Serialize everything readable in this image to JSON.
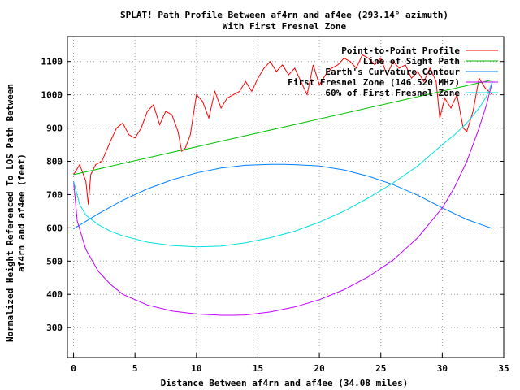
{
  "chart_data": {
    "type": "line",
    "title": "SPLAT! Path Profile Between af4rn and af4ee (293.14° azimuth)",
    "subtitle": "With First Fresnel Zone",
    "xlabel": "Distance Between af4rn and af4ee (34.08 miles)",
    "ylabel": "Normalized Height Referenced To LOS Path Between af4rn and af4ee (feet)",
    "ylabel_lines": [
      "Normalized Height Referenced To LOS Path Between",
      "af4rn and af4ee (feet)"
    ],
    "xlim": [
      -0.5,
      35
    ],
    "ylim": [
      210,
      1175
    ],
    "xticks": [
      "0",
      "5",
      "10",
      "15",
      "20",
      "25",
      "30",
      "35"
    ],
    "yticks": [
      "300",
      "400",
      "500",
      "600",
      "700",
      "800",
      "900",
      "1000",
      "1100"
    ],
    "grid": true,
    "legend_position": "top-right",
    "series": [
      {
        "name": "Point-to-Point Profile",
        "color": "#ff0000",
        "x": [
          0,
          0.5,
          1,
          1.2,
          1.4,
          1.8,
          2.3,
          3,
          3.5,
          4,
          4.5,
          5,
          5.5,
          6,
          6.5,
          7,
          7.5,
          8,
          8.5,
          8.8,
          9.1,
          9.5,
          10,
          10.5,
          11,
          11.5,
          12,
          12.5,
          13,
          13.5,
          14,
          14.5,
          15,
          15.5,
          16,
          16.5,
          17,
          17.5,
          18,
          18.5,
          19,
          19.5,
          20,
          20.5,
          21,
          21.5,
          22,
          22.5,
          23,
          23.5,
          24,
          24.5,
          25,
          25.5,
          26,
          26.5,
          27,
          27.5,
          28,
          28.5,
          29,
          29.5,
          29.8,
          30.2,
          30.7,
          31.2,
          31.7,
          32,
          32.5,
          33,
          33.5,
          34.08
        ],
        "values": [
          760,
          790,
          740,
          670,
          760,
          790,
          800,
          860,
          900,
          915,
          880,
          870,
          900,
          950,
          970,
          910,
          950,
          940,
          890,
          830,
          840,
          880,
          1000,
          980,
          930,
          1010,
          960,
          990,
          1000,
          1010,
          1040,
          1010,
          1050,
          1080,
          1100,
          1070,
          1090,
          1060,
          1080,
          1040,
          1000,
          1090,
          1030,
          1060,
          1080,
          1090,
          1110,
          1100,
          1080,
          1120,
          1110,
          1090,
          1110,
          1060,
          1100,
          1080,
          1090,
          1050,
          1070,
          1040,
          1080,
          1040,
          930,
          990,
          960,
          1000,
          900,
          890,
          950,
          1050,
          1020,
          1000
        ]
      },
      {
        "name": "Line of Sight Path",
        "color": "#00c000",
        "x": [
          0,
          34.08
        ],
        "values": [
          760,
          1045
        ]
      },
      {
        "name": "Earth's Curvature Contour",
        "color": "#0080ff",
        "x": [
          0,
          2,
          4,
          6,
          8,
          10,
          12,
          14,
          16,
          17.04,
          18,
          20,
          22,
          24,
          26,
          28,
          30,
          32,
          34.08
        ],
        "values": [
          597,
          642,
          683,
          717,
          744,
          765,
          780,
          788,
          791,
          791,
          790,
          786,
          774,
          755,
          730,
          698,
          660,
          625,
          598
        ]
      },
      {
        "name": "First Fresnel Zone (146.520 MHz)",
        "color": "#c000ff",
        "x": [
          0,
          0.3,
          1,
          2,
          3,
          4,
          6,
          8,
          10,
          12,
          13,
          14,
          16,
          18,
          20,
          22,
          24,
          26,
          28,
          30,
          31,
          32,
          33,
          33.6,
          34.08
        ],
        "values": [
          740,
          620,
          535,
          470,
          430,
          400,
          368,
          350,
          341,
          337,
          337,
          338,
          347,
          362,
          384,
          414,
          453,
          503,
          570,
          660,
          722,
          800,
          900,
          970,
          1040
        ]
      },
      {
        "name": "60% of First Fresnel Zone",
        "color": "#00e0e0",
        "x": [
          0,
          0.5,
          1,
          2,
          3,
          4,
          6,
          8,
          10,
          12,
          14,
          16,
          18,
          20,
          22,
          24,
          26,
          28,
          30,
          31,
          32,
          33,
          33.6,
          34.08
        ],
        "values": [
          740,
          670,
          638,
          610,
          590,
          576,
          557,
          547,
          543,
          545,
          555,
          570,
          590,
          617,
          650,
          690,
          735,
          786,
          850,
          880,
          915,
          960,
          995,
          1040
        ]
      }
    ]
  }
}
